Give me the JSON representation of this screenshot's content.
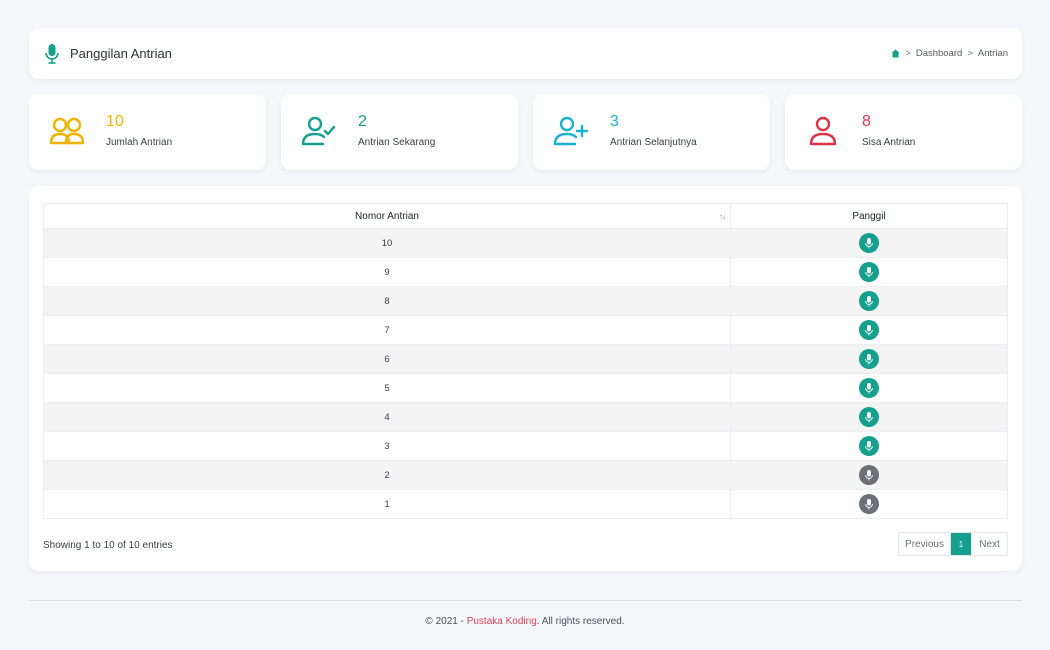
{
  "header": {
    "title": "Panggilan Antrian",
    "breadcrumb": {
      "dashboard": "Dashboard",
      "current": "Antrian",
      "separator": ">"
    }
  },
  "stats": [
    {
      "value": "10",
      "label": "Jumlah Antrian",
      "color": "#f0b400",
      "icon": "users-icon"
    },
    {
      "value": "2",
      "label": "Antrian Sekarang",
      "color": "#14a08d",
      "icon": "user-check-icon"
    },
    {
      "value": "3",
      "label": "Antrian Selanjutnya",
      "color": "#1ab0d0",
      "icon": "user-plus-icon"
    },
    {
      "value": "8",
      "label": "Sisa Antrian",
      "color": "#d9354a",
      "icon": "user-icon"
    }
  ],
  "table": {
    "columns": {
      "nomor": "Nomor Antrian",
      "panggil": "Panggil"
    },
    "sort_glyph": "↑↓",
    "rows": [
      {
        "nomor": "10",
        "status": "active"
      },
      {
        "nomor": "9",
        "status": "active"
      },
      {
        "nomor": "8",
        "status": "active"
      },
      {
        "nomor": "7",
        "status": "active"
      },
      {
        "nomor": "6",
        "status": "active"
      },
      {
        "nomor": "5",
        "status": "active"
      },
      {
        "nomor": "4",
        "status": "active"
      },
      {
        "nomor": "3",
        "status": "active"
      },
      {
        "nomor": "2",
        "status": "done"
      },
      {
        "nomor": "1",
        "status": "done"
      }
    ],
    "info": "Showing 1 to 10 of 10 entries",
    "pagination": {
      "previous": "Previous",
      "page": "1",
      "next": "Next"
    }
  },
  "footer": {
    "prefix": "© 2021 - ",
    "brand": "Pustaka Koding",
    "suffix": ". All rights reserved."
  },
  "colors": {
    "accent": "#14a08d",
    "done": "#6a7076",
    "brand": "#d9455a"
  }
}
